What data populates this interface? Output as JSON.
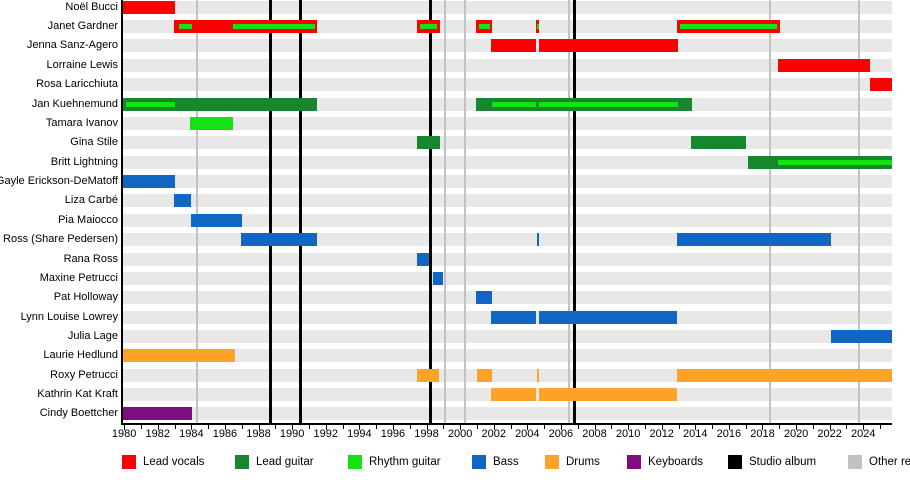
{
  "chart_data": {
    "type": "bar",
    "subtype": "gantt_timeline",
    "description": "Band members timeline, 1980-2025",
    "grid": "vertical event lines",
    "legend_position": "bottom",
    "axis": {
      "start": 1979.93,
      "end": 2025.71,
      "tick_step": 1,
      "label_years": [
        1980,
        1982,
        1984,
        1986,
        1988,
        1990,
        1992,
        1994,
        1996,
        1998,
        2000,
        2002,
        2004,
        2006,
        2008,
        2010,
        2012,
        2014,
        2016,
        2018,
        2020,
        2022,
        2024
      ]
    },
    "colors": {
      "lead_vocals": "#fb0000",
      "lead_guitar": "#17862d",
      "rhythm_guitar": "#15e115",
      "bass": "#1166c4",
      "drums": "#ffa228",
      "keyboards": "#7e0d7e",
      "studio_album": "#000000",
      "other_release": "#c2c2c2",
      "row_stripe": "#e8e8e8"
    },
    "legend": [
      {
        "role": "lead_vocals",
        "label": "Lead vocals"
      },
      {
        "role": "lead_guitar",
        "label": "Lead guitar"
      },
      {
        "role": "rhythm_guitar",
        "label": "Rhythm guitar"
      },
      {
        "role": "bass",
        "label": "Bass"
      },
      {
        "role": "drums",
        "label": "Drums"
      },
      {
        "role": "keyboards",
        "label": "Keyboards"
      },
      {
        "role": "studio_album",
        "label": "Studio album"
      },
      {
        "role": "other_release",
        "label": "Other releases"
      }
    ],
    "events": {
      "studio_albums": [
        1988.72,
        1990.5,
        1998.22,
        2006.8
      ],
      "other_releases": [
        1984.35,
        1999.1,
        2000.3,
        2006.5,
        2018.45,
        2023.75
      ]
    },
    "members": [
      {
        "name": "Noël Bucci",
        "segments": [
          {
            "role": "lead_vocals",
            "start": 1979.93,
            "end": 1983.0
          }
        ]
      },
      {
        "name": "Janet Gardner",
        "segments": [
          {
            "role": "lead_vocals",
            "start": 1982.98,
            "end": 1991.5,
            "overlays": [
              {
                "role": "rhythm_guitar",
                "start": 1983.25,
                "end": 1984.05
              },
              {
                "role": "rhythm_guitar",
                "start": 1986.5,
                "end": 1991.38
              }
            ]
          },
          {
            "role": "lead_vocals",
            "start": 1997.45,
            "end": 1998.8,
            "overlays": [
              {
                "role": "rhythm_guitar",
                "start": 1997.62,
                "end": 1998.62
              }
            ]
          },
          {
            "role": "lead_vocals",
            "start": 2000.95,
            "end": 2001.9,
            "overlays": [
              {
                "role": "rhythm_guitar",
                "start": 2001.12,
                "end": 2001.78
              }
            ]
          },
          {
            "role": "lead_vocals",
            "start": 2004.52,
            "end": 2004.7,
            "overlays": [
              {
                "role": "rhythm_guitar",
                "start": 2004.55,
                "end": 2004.67
              }
            ]
          },
          {
            "role": "lead_vocals",
            "start": 2012.92,
            "end": 2019.05,
            "overlays": [
              {
                "role": "rhythm_guitar",
                "start": 2013.1,
                "end": 2018.88
              }
            ]
          }
        ]
      },
      {
        "name": "Jenna Sanz-Agero",
        "segments": [
          {
            "role": "lead_vocals",
            "start": 2001.85,
            "end": 2004.5
          },
          {
            "role": "lead_vocals",
            "start": 2004.7,
            "end": 2012.95
          }
        ]
      },
      {
        "name": "Lorraine Lewis",
        "segments": [
          {
            "role": "lead_vocals",
            "start": 2018.92,
            "end": 2024.4
          }
        ]
      },
      {
        "name": "Rosa Laricchiuta",
        "segments": [
          {
            "role": "lead_vocals",
            "start": 2024.4,
            "end": 2025.71
          }
        ]
      },
      {
        "name": "Jan Kuehnemund",
        "segments": [
          {
            "role": "lead_guitar",
            "start": 1979.93,
            "end": 1991.5,
            "overlays": [
              {
                "role": "rhythm_guitar",
                "start": 1980.1,
                "end": 1983.0
              }
            ]
          },
          {
            "role": "lead_guitar",
            "start": 2000.95,
            "end": 2013.8,
            "overlays": [
              {
                "role": "rhythm_guitar",
                "start": 2001.9,
                "end": 2004.5
              },
              {
                "role": "rhythm_guitar",
                "start": 2004.7,
                "end": 2012.95
              }
            ]
          }
        ]
      },
      {
        "name": "Tamara Ivanov",
        "segments": [
          {
            "role": "rhythm_guitar",
            "start": 1983.9,
            "end": 1986.5
          }
        ]
      },
      {
        "name": "Gina Stile",
        "segments": [
          {
            "role": "lead_guitar",
            "start": 1997.45,
            "end": 1998.8
          },
          {
            "role": "lead_guitar",
            "start": 2013.75,
            "end": 2017.0
          }
        ]
      },
      {
        "name": "Britt Lightning",
        "segments": [
          {
            "role": "lead_guitar",
            "start": 2017.12,
            "end": 2025.71,
            "overlays": [
              {
                "role": "rhythm_guitar",
                "start": 2018.92,
                "end": 2025.71
              }
            ]
          }
        ]
      },
      {
        "name": "Gayle Erickson-DeMatoff",
        "segments": [
          {
            "role": "bass",
            "start": 1979.93,
            "end": 1983.0
          }
        ]
      },
      {
        "name": "Liza Carbé",
        "segments": [
          {
            "role": "bass",
            "start": 1982.98,
            "end": 1984.0
          }
        ]
      },
      {
        "name": "Pia Maiocco",
        "segments": [
          {
            "role": "bass",
            "start": 1984.0,
            "end": 1987.02
          }
        ]
      },
      {
        "name": "Share Ross (Share Pedersen)",
        "segments": [
          {
            "role": "bass",
            "start": 1986.97,
            "end": 1991.5
          },
          {
            "role": "bass",
            "start": 2004.55,
            "end": 2004.7
          },
          {
            "role": "bass",
            "start": 2012.92,
            "end": 2022.08
          }
        ]
      },
      {
        "name": "Rana Ross",
        "segments": [
          {
            "role": "bass",
            "start": 1997.45,
            "end": 1998.15
          }
        ]
      },
      {
        "name": "Maxine Petrucci",
        "segments": [
          {
            "role": "bass",
            "start": 1998.4,
            "end": 1999.0
          }
        ]
      },
      {
        "name": "Pat Holloway",
        "segments": [
          {
            "role": "bass",
            "start": 2000.95,
            "end": 2001.9
          }
        ]
      },
      {
        "name": "Lynn Louise Lowrey",
        "segments": [
          {
            "role": "bass",
            "start": 2001.85,
            "end": 2004.5
          },
          {
            "role": "bass",
            "start": 2004.7,
            "end": 2012.9
          }
        ]
      },
      {
        "name": "Julia Lage",
        "segments": [
          {
            "role": "bass",
            "start": 2022.08,
            "end": 2025.71
          }
        ]
      },
      {
        "name": "Laurie Hedlund",
        "segments": [
          {
            "role": "drums",
            "start": 1979.93,
            "end": 1986.6
          }
        ]
      },
      {
        "name": "Roxy Petrucci",
        "segments": [
          {
            "role": "drums",
            "start": 1997.45,
            "end": 1998.75
          },
          {
            "role": "drums",
            "start": 2001.0,
            "end": 2001.9
          },
          {
            "role": "drums",
            "start": 2004.55,
            "end": 2004.7
          },
          {
            "role": "drums",
            "start": 2012.92,
            "end": 2025.71
          }
        ]
      },
      {
        "name": "Kathrin Kat Kraft",
        "segments": [
          {
            "role": "drums",
            "start": 2001.85,
            "end": 2004.5
          },
          {
            "role": "drums",
            "start": 2004.7,
            "end": 2012.9
          }
        ]
      },
      {
        "name": "Cindy Boettcher",
        "segments": [
          {
            "role": "keyboards",
            "start": 1979.93,
            "end": 1984.05
          }
        ]
      }
    ]
  }
}
